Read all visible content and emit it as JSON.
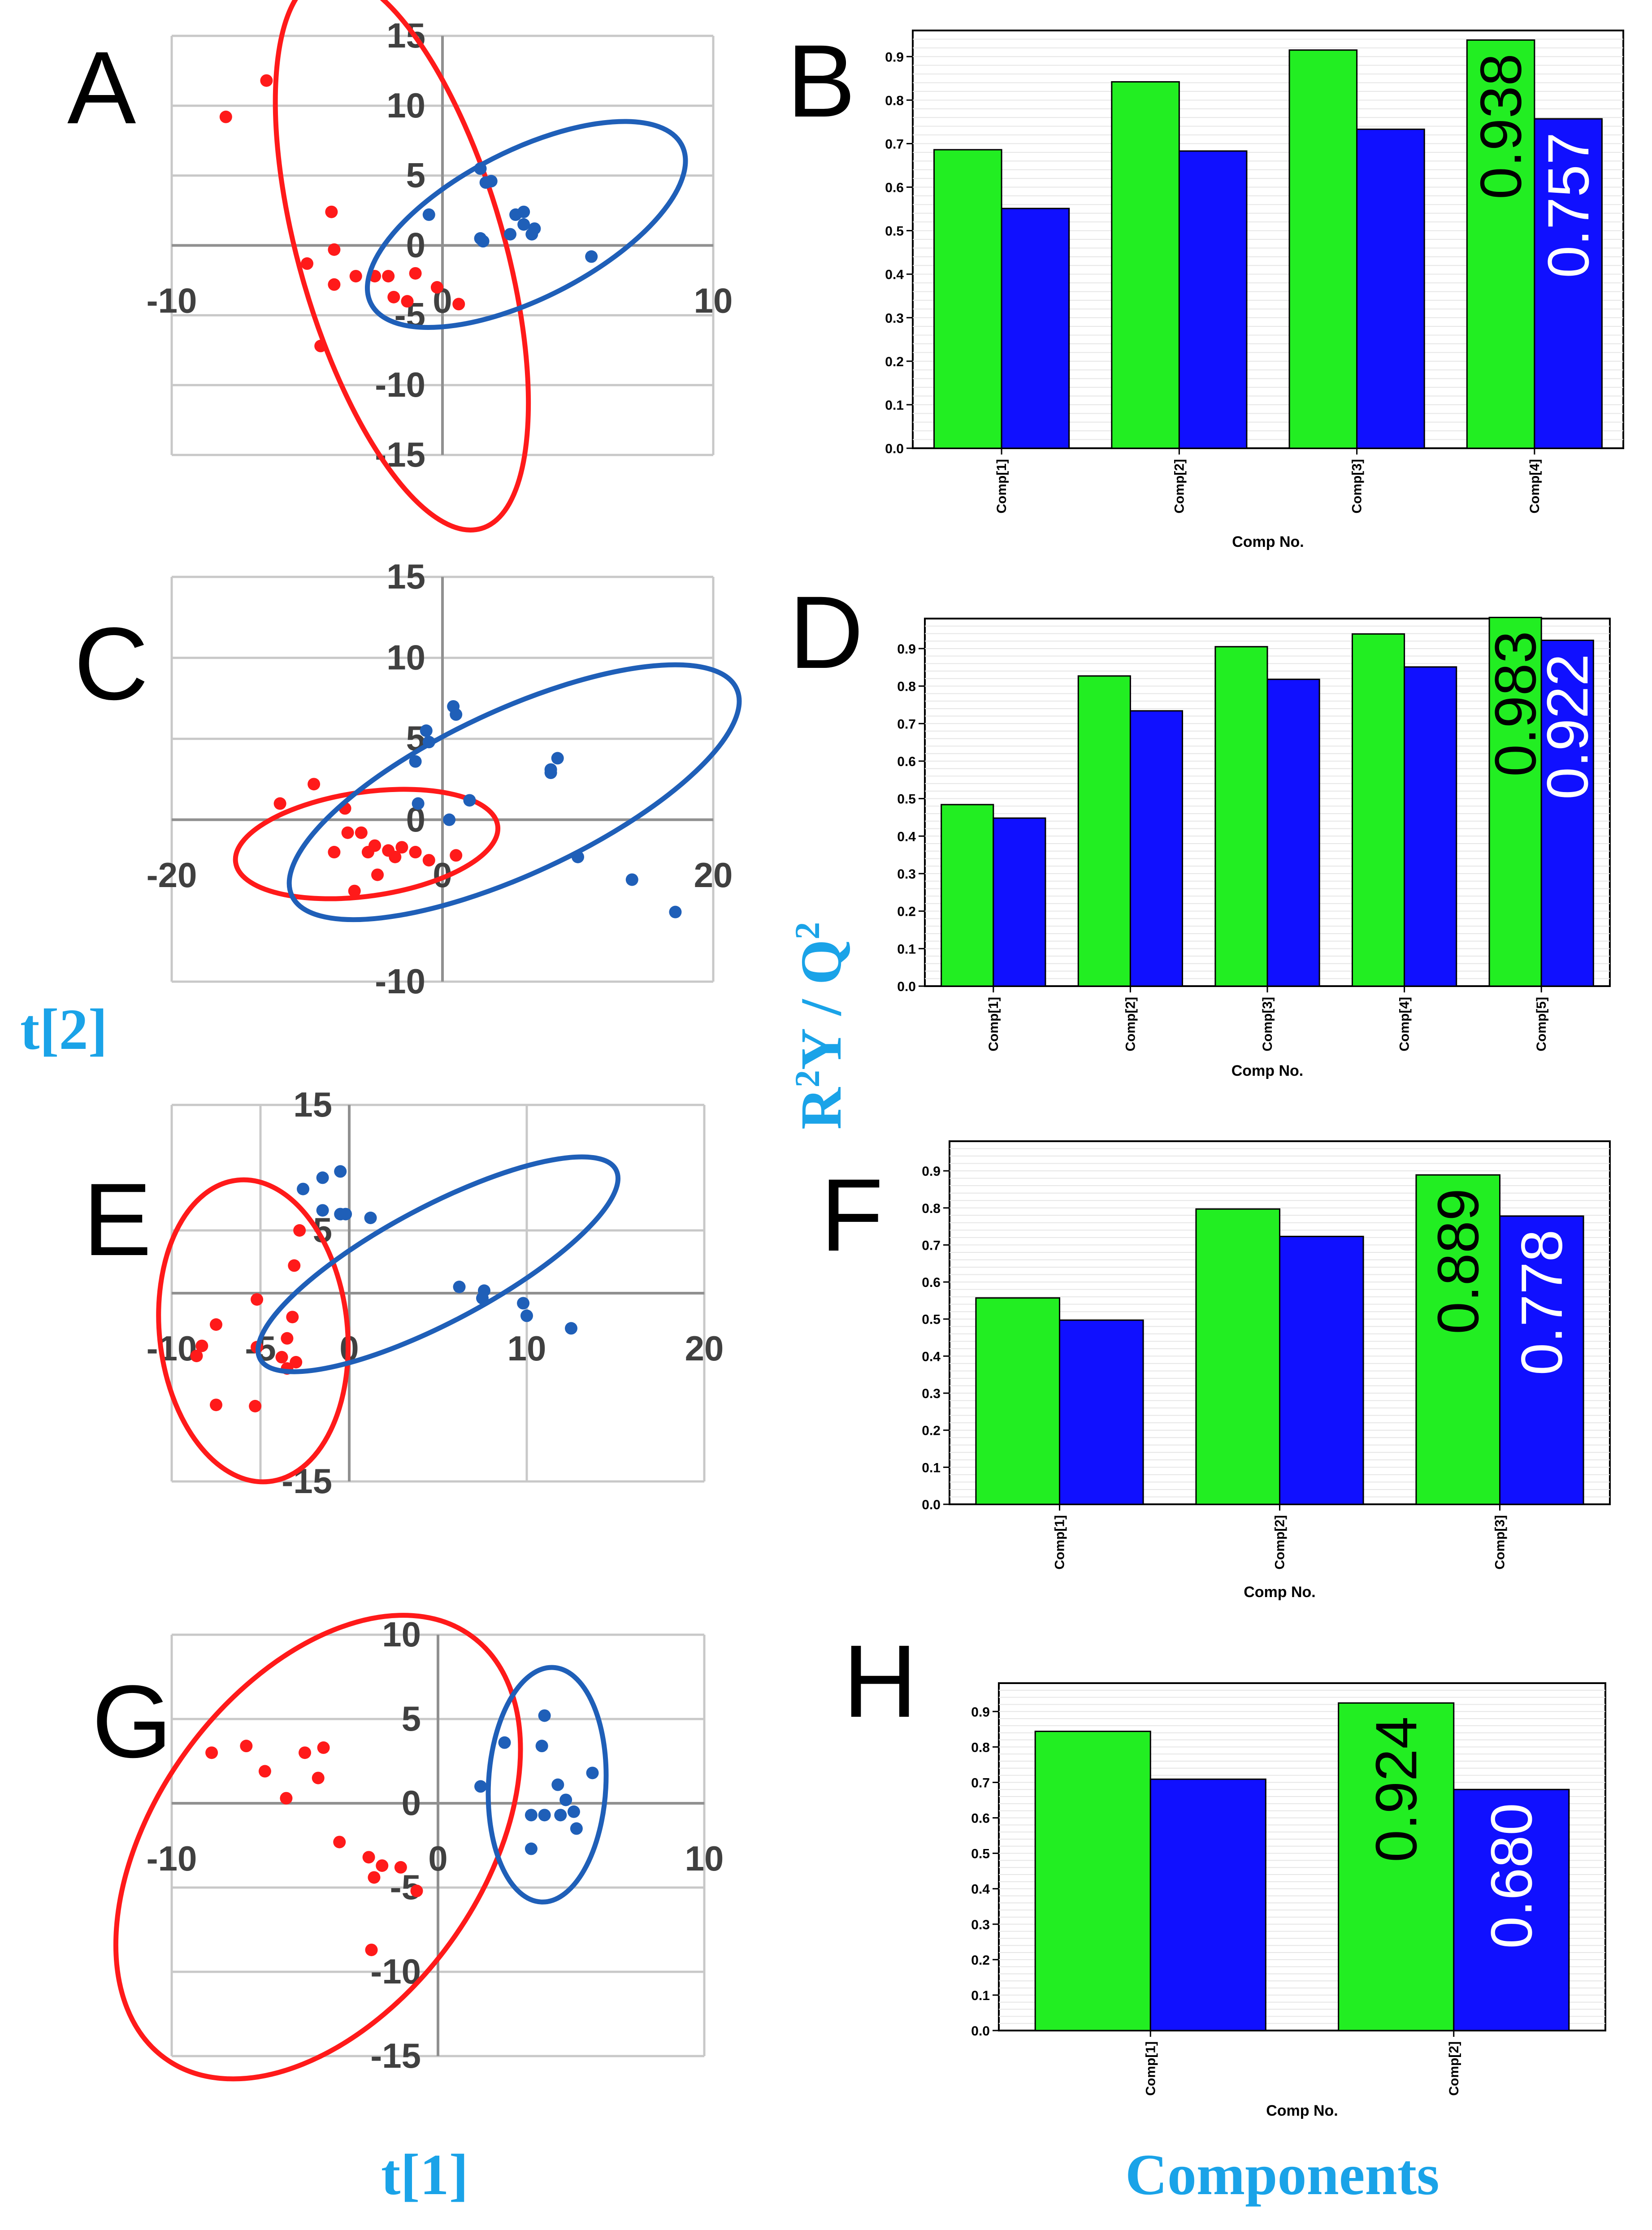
{
  "figure": {
    "axis_titles": {
      "t2": "t[2]",
      "t1": "t[1]",
      "components": "Components",
      "r2y": "R",
      "r2y_sup": "2",
      "r2y_mid": "Y / Q",
      "q2_sup": "2"
    }
  },
  "colors": {
    "red": "#ff1a1a",
    "blue": "#1f5fb8",
    "green": "#22ee22",
    "barblue": "#1010ff",
    "grid": "#c8c8c8",
    "axis": "#909090"
  },
  "chart_data": [
    {
      "id": "A",
      "type": "scatter",
      "label": "A",
      "xlim": [
        -10,
        10
      ],
      "ylim": [
        -15,
        15
      ],
      "xticks": [
        -10,
        0,
        10
      ],
      "yticks": [
        15,
        10,
        5,
        0,
        -5,
        -10,
        -15
      ],
      "series": [
        {
          "name": "red",
          "color": "#ff1a1a",
          "points": [
            [
              -8,
              9.2
            ],
            [
              -6.5,
              11.8
            ],
            [
              -4.1,
              2.4
            ],
            [
              -5,
              -1.3
            ],
            [
              -4,
              -0.3
            ],
            [
              -4,
              -2.8
            ],
            [
              -3.2,
              -2.2
            ],
            [
              -2.5,
              -2.2
            ],
            [
              -2,
              -2.2
            ],
            [
              -1.8,
              -3.7
            ],
            [
              -1.3,
              -4
            ],
            [
              -1,
              -2
            ],
            [
              -0.2,
              -3
            ],
            [
              0.6,
              -4.2
            ],
            [
              -4.5,
              -7.2
            ]
          ],
          "ellipse": {
            "cx": -1.5,
            "cy": -0.5,
            "rx": 5.0,
            "ry": 14.0,
            "angle": 16
          }
        },
        {
          "name": "blue",
          "color": "#1f5fb8",
          "points": [
            [
              1.4,
              5.5
            ],
            [
              1.6,
              4.5
            ],
            [
              1.8,
              4.6
            ],
            [
              -0.5,
              2.2
            ],
            [
              2.7,
              2.2
            ],
            [
              3.0,
              2.4
            ],
            [
              3.0,
              1.5
            ],
            [
              1.4,
              0.5
            ],
            [
              1.5,
              0.3
            ],
            [
              2.5,
              0.8
            ],
            [
              3.3,
              0.8
            ],
            [
              3.4,
              1.2
            ],
            [
              5.5,
              -0.8
            ]
          ],
          "ellipse": {
            "cx": 3.1,
            "cy": 1.5,
            "rx": 8.5,
            "ry": 3.6,
            "angle": 27
          }
        }
      ]
    },
    {
      "id": "C",
      "type": "scatter",
      "label": "C",
      "xlim": [
        -20,
        20
      ],
      "ylim": [
        -10,
        15
      ],
      "xticks": [
        -20,
        0,
        20
      ],
      "yticks": [
        15,
        10,
        5,
        0,
        -10
      ],
      "series": [
        {
          "name": "red",
          "color": "#ff1a1a",
          "points": [
            [
              -12,
              1
            ],
            [
              -9.5,
              2.2
            ],
            [
              -8,
              -2
            ],
            [
              -7.2,
              0.7
            ],
            [
              -7,
              -0.8
            ],
            [
              -6,
              -0.8
            ],
            [
              -5.5,
              -2
            ],
            [
              -5,
              -1.6
            ],
            [
              -4,
              -1.9
            ],
            [
              -3.5,
              -2.3
            ],
            [
              -3,
              -1.7
            ],
            [
              -2,
              -2
            ],
            [
              -1,
              -2.5
            ],
            [
              -4.8,
              -3.4
            ],
            [
              -6.5,
              -4.4
            ],
            [
              1,
              -2.2
            ]
          ],
          "ellipse": {
            "cx": -5.6,
            "cy": -1.5,
            "rx": 8.9,
            "ry": 3.5,
            "angle": 8
          }
        },
        {
          "name": "blue",
          "color": "#1f5fb8",
          "points": [
            [
              0.8,
              7
            ],
            [
              1,
              6.5
            ],
            [
              -1.2,
              5.5
            ],
            [
              -1,
              4.8
            ],
            [
              -2,
              3.6
            ],
            [
              8.5,
              3.8
            ],
            [
              8,
              3.1
            ],
            [
              8,
              2.9
            ],
            [
              -1.8,
              1
            ],
            [
              2,
              1.2
            ],
            [
              0.5,
              0
            ],
            [
              10,
              -2.3
            ],
            [
              14,
              -3.7
            ],
            [
              17.2,
              -5.7
            ]
          ],
          "ellipse": {
            "cx": 5.3,
            "cy": 1.7,
            "rx": 16.5,
            "ry": 5.5,
            "angle": 25
          }
        }
      ]
    },
    {
      "id": "E",
      "type": "scatter",
      "label": "E",
      "xlim": [
        -10,
        20
      ],
      "ylim": [
        -15,
        15
      ],
      "xticks": [
        -10,
        -5,
        0,
        10,
        20
      ],
      "yticks": [
        15,
        5,
        -15
      ],
      "series": [
        {
          "name": "red",
          "color": "#ff1a1a",
          "points": [
            [
              -2.8,
              5
            ],
            [
              -3.1,
              2.2
            ],
            [
              -5.2,
              -0.5
            ],
            [
              -3.5,
              -3.6
            ],
            [
              -3.2,
              -1.9
            ],
            [
              -7.5,
              -2.5
            ],
            [
              -8.3,
              -4.2
            ],
            [
              -5.2,
              -4.3
            ],
            [
              -3.8,
              -5.1
            ],
            [
              -3.5,
              -6
            ],
            [
              -3,
              -5.5
            ],
            [
              -7.5,
              -8.9
            ],
            [
              -5.3,
              -9
            ],
            [
              -8.6,
              -5
            ]
          ],
          "ellipse": {
            "cx": -5.4,
            "cy": -3.0,
            "rx": 6.2,
            "ry": 10.0,
            "angle": 6
          }
        },
        {
          "name": "blue",
          "color": "#1f5fb8",
          "points": [
            [
              -2.6,
              8.3
            ],
            [
              -1.5,
              9.2
            ],
            [
              -0.5,
              9.7
            ],
            [
              -1.5,
              6.6
            ],
            [
              -0.5,
              6.3
            ],
            [
              -0.2,
              6.3
            ],
            [
              1.2,
              6
            ],
            [
              6.2,
              0.5
            ],
            [
              7.5,
              -0.4
            ],
            [
              7.6,
              0.2
            ],
            [
              9.8,
              -0.8
            ],
            [
              10,
              -1.8
            ],
            [
              12.5,
              -2.8
            ]
          ],
          "ellipse": {
            "cx": 5.0,
            "cy": 2.3,
            "rx": 13.3,
            "ry": 3.8,
            "angle": 28
          }
        }
      ]
    },
    {
      "id": "G",
      "type": "scatter",
      "label": "G",
      "xlim": [
        -10,
        10
      ],
      "ylim": [
        -15,
        10
      ],
      "xticks": [
        -10,
        0,
        10
      ],
      "yticks": [
        10,
        5,
        0,
        -5,
        -10,
        -15
      ],
      "series": [
        {
          "name": "red",
          "color": "#ff1a1a",
          "points": [
            [
              -8.5,
              3
            ],
            [
              -7.2,
              3.4
            ],
            [
              -6.5,
              1.9
            ],
            [
              -5.7,
              0.3
            ],
            [
              -5,
              3
            ],
            [
              -4.3,
              3.3
            ],
            [
              -4.5,
              1.5
            ],
            [
              -3.7,
              -2.3
            ],
            [
              -2.6,
              -3.2
            ],
            [
              -2.1,
              -3.7
            ],
            [
              -1.4,
              -3.8
            ],
            [
              -2.4,
              -4.4
            ],
            [
              -0.8,
              -5.2
            ],
            [
              -2.5,
              -8.7
            ]
          ],
          "ellipse": {
            "cx": -4.5,
            "cy": -2.6,
            "rx": 7.5,
            "ry": 12.0,
            "angle": -36
          }
        },
        {
          "name": "blue",
          "color": "#1f5fb8",
          "points": [
            [
              2.5,
              3.6
            ],
            [
              4,
              5.2
            ],
            [
              3.9,
              3.4
            ],
            [
              5.8,
              1.8
            ],
            [
              1.6,
              1
            ],
            [
              4.5,
              1.1
            ],
            [
              4.8,
              0.2
            ],
            [
              5.1,
              -0.5
            ],
            [
              3.5,
              -0.7
            ],
            [
              4.0,
              -0.7
            ],
            [
              4.6,
              -0.7
            ],
            [
              5.2,
              -1.5
            ],
            [
              3.5,
              -2.7
            ]
          ],
          "ellipse": {
            "cx": 4.1,
            "cy": 1.1,
            "rx": 2.7,
            "ry": 5.4,
            "angle": -3
          }
        }
      ]
    },
    {
      "id": "B",
      "type": "bar",
      "label": "B",
      "categories": [
        "Comp[1]",
        "Comp[2]",
        "Comp[3]",
        "Comp[4]"
      ],
      "series": [
        {
          "name": "R2Y",
          "color": "#22ee22",
          "values": [
            0.686,
            0.842,
            0.915,
            0.938
          ]
        },
        {
          "name": "Q2",
          "color": "#1010ff",
          "values": [
            0.551,
            0.683,
            0.733,
            0.757
          ]
        }
      ],
      "ylim": [
        0,
        0.96
      ],
      "yticks": [
        "0.0",
        "0.1",
        "0.2",
        "0.3",
        "0.4",
        "0.5",
        "0.6",
        "0.7",
        "0.8",
        "0.9"
      ],
      "xlabel": "Comp No.",
      "annotations": [
        "0.938",
        "0.757"
      ]
    },
    {
      "id": "D",
      "type": "bar",
      "label": "D",
      "categories": [
        "Comp[1]",
        "Comp[2]",
        "Comp[3]",
        "Comp[4]",
        "Comp[5]"
      ],
      "series": [
        {
          "name": "R2Y",
          "color": "#22ee22",
          "values": [
            0.484,
            0.827,
            0.905,
            0.939,
            0.983
          ]
        },
        {
          "name": "Q2",
          "color": "#1010ff",
          "values": [
            0.448,
            0.734,
            0.818,
            0.851,
            0.922
          ]
        }
      ],
      "ylim": [
        0,
        0.98
      ],
      "yticks": [
        "0.0",
        "0.1",
        "0.2",
        "0.3",
        "0.4",
        "0.5",
        "0.6",
        "0.7",
        "0.8",
        "0.9"
      ],
      "xlabel": "Comp No.",
      "annotations": [
        "0.983",
        "0.922"
      ]
    },
    {
      "id": "F",
      "type": "bar",
      "label": "F",
      "categories": [
        "Comp[1]",
        "Comp[2]",
        "Comp[3]"
      ],
      "series": [
        {
          "name": "R2Y",
          "color": "#22ee22",
          "values": [
            0.557,
            0.797,
            0.889
          ]
        },
        {
          "name": "Q2",
          "color": "#1010ff",
          "values": [
            0.497,
            0.723,
            0.778
          ]
        }
      ],
      "ylim": [
        0,
        0.98
      ],
      "yticks": [
        "0.0",
        "0.1",
        "0.2",
        "0.3",
        "0.4",
        "0.5",
        "0.6",
        "0.7",
        "0.8",
        "0.9"
      ],
      "xlabel": "Comp No.",
      "annotations": [
        "0.889",
        "0.778"
      ]
    },
    {
      "id": "H",
      "type": "bar",
      "label": "H",
      "categories": [
        "Comp[1]",
        "Comp[2]"
      ],
      "series": [
        {
          "name": "R2Y",
          "color": "#22ee22",
          "values": [
            0.844,
            0.924
          ]
        },
        {
          "name": "Q2",
          "color": "#1010ff",
          "values": [
            0.709,
            0.68
          ]
        }
      ],
      "ylim": [
        0,
        0.98
      ],
      "yticks": [
        "0.0",
        "0.1",
        "0.2",
        "0.3",
        "0.4",
        "0.5",
        "0.6",
        "0.7",
        "0.8",
        "0.9"
      ],
      "xlabel": "Comp No.",
      "annotations": [
        "0.924",
        "0.680"
      ]
    }
  ]
}
